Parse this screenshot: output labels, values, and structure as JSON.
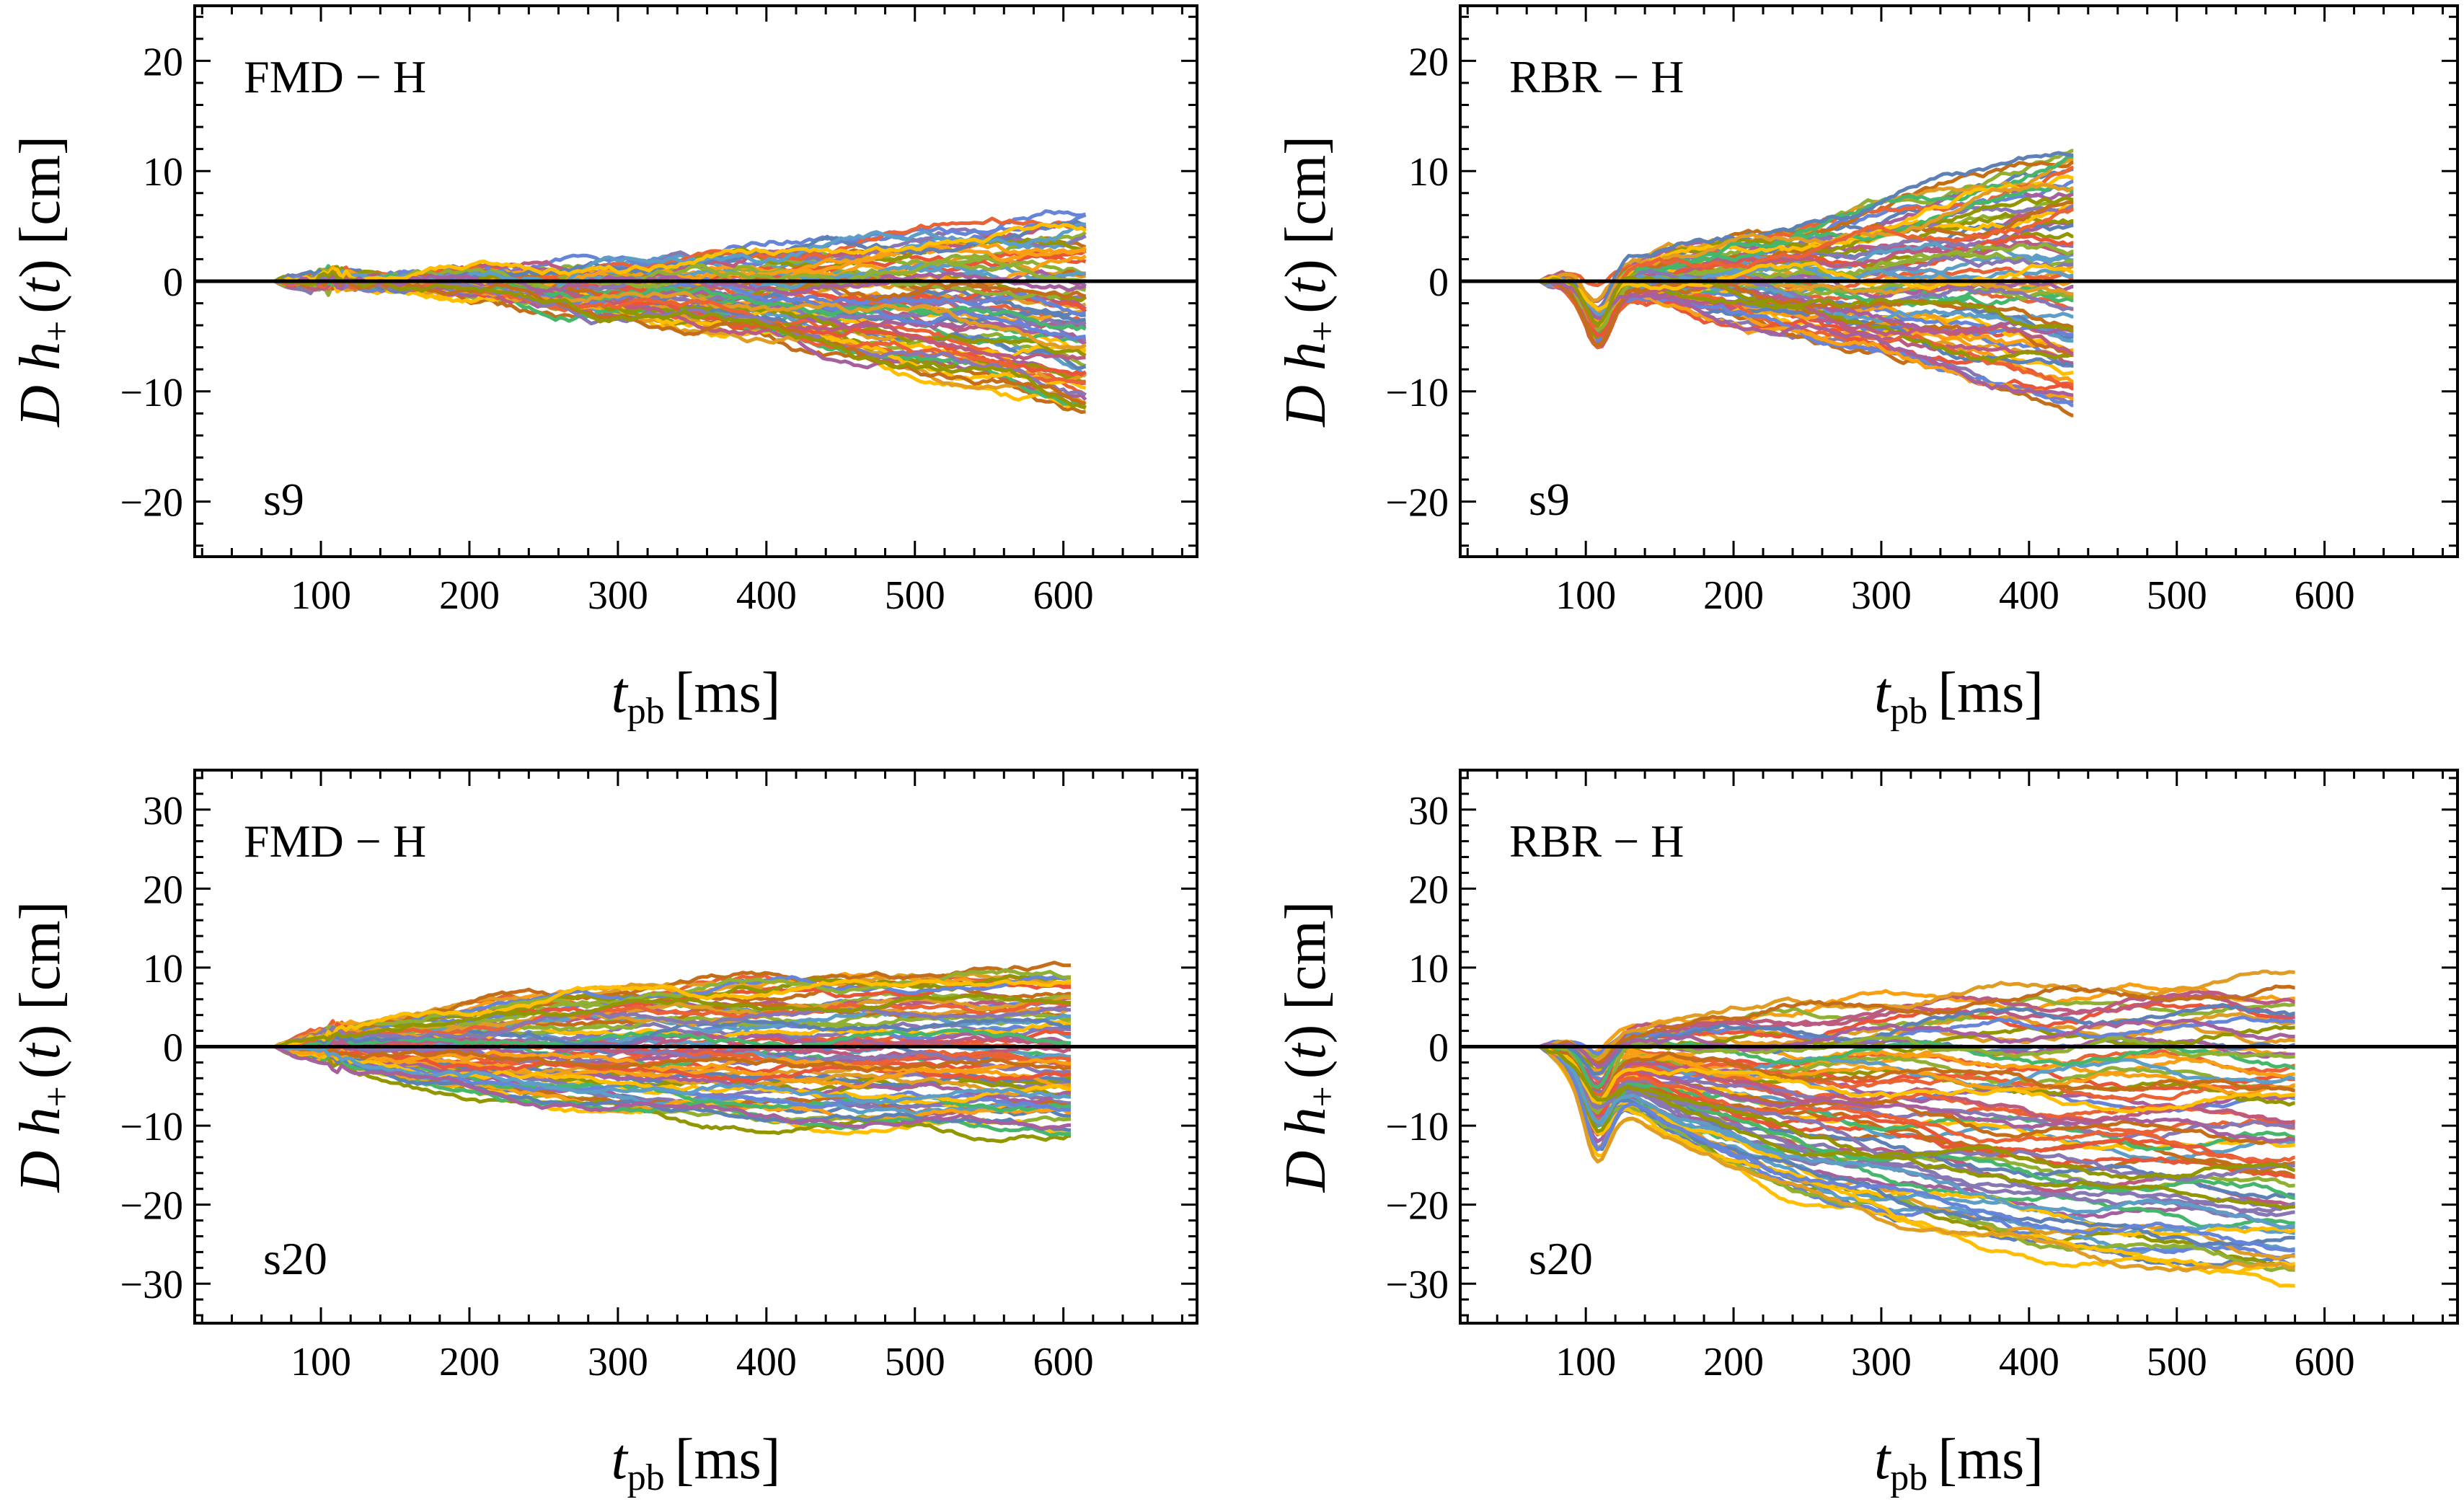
{
  "figure": {
    "colors": [
      "#5E81B5",
      "#E19C24",
      "#8FB032",
      "#EB6235",
      "#8778B3",
      "#C56E1A",
      "#5D9EC7",
      "#FFBF00",
      "#A5609D",
      "#929600",
      "#E95536",
      "#6685D9",
      "#F89F13",
      "#BC5B80",
      "#47B66D"
    ],
    "zero_line_color": "#000000"
  },
  "chart_data": [
    {
      "type": "line",
      "panel_label": "FMD − H",
      "model_label": "s9",
      "xlabel": "t_pb [ms]",
      "xlabel_main": "t",
      "xlabel_sub": "pb",
      "xlabel_unit": "[ms]",
      "ylabel": "D h+ (t) [cm]",
      "xlim": [
        15,
        690
      ],
      "ylim": [
        -25,
        25
      ],
      "xticks": [
        100,
        200,
        300,
        400,
        500,
        600
      ],
      "yticks": [
        -20,
        -10,
        0,
        10,
        20
      ],
      "t_start": 30,
      "t_end": 615,
      "n_series": 70,
      "final_values_range": [
        -12,
        6
      ],
      "series_examples": [
        {
          "x": [
            30,
            100,
            200,
            300,
            400,
            500,
            615
          ],
          "y": [
            0,
            0.5,
            1.5,
            2.5,
            2.5,
            5.5,
            6
          ]
        },
        {
          "x": [
            30,
            100,
            200,
            300,
            400,
            500,
            615
          ],
          "y": [
            0,
            -0.3,
            -1.5,
            -3,
            -5,
            -9,
            -12
          ]
        }
      ]
    },
    {
      "type": "line",
      "panel_label": "RBR − H",
      "model_label": "s9",
      "xlabel": "t_pb [ms]",
      "xlabel_main": "t",
      "xlabel_sub": "pb",
      "xlabel_unit": "[ms]",
      "ylabel": "D h+ (t) [cm]",
      "xlim": [
        15,
        690
      ],
      "ylim": [
        -25,
        25
      ],
      "xticks": [
        100,
        200,
        300,
        400,
        500,
        600
      ],
      "yticks": [
        -20,
        -10,
        0,
        10,
        20
      ],
      "t_start": 30,
      "t_end": 430,
      "n_series": 70,
      "final_values_range": [
        -12,
        12
      ],
      "series_examples": [
        {
          "x": [
            30,
            100,
            200,
            300,
            350,
            430
          ],
          "y": [
            0,
            -1,
            1.5,
            2,
            7,
            11.5
          ]
        },
        {
          "x": [
            30,
            100,
            200,
            300,
            380,
            430
          ],
          "y": [
            0,
            -5,
            -4,
            -5,
            -8,
            -12
          ]
        }
      ]
    },
    {
      "type": "line",
      "panel_label": "FMD − H",
      "model_label": "s20",
      "xlabel": "t_pb [ms]",
      "xlabel_main": "t",
      "xlabel_sub": "pb",
      "xlabel_unit": "[ms]",
      "ylabel": "D h+ (t) [cm]",
      "xlim": [
        15,
        690
      ],
      "ylim": [
        -35,
        35
      ],
      "xticks": [
        100,
        200,
        300,
        400,
        500,
        600
      ],
      "yticks": [
        -30,
        -20,
        -10,
        0,
        10,
        20,
        30
      ],
      "t_start": 30,
      "t_end": 605,
      "n_series": 70,
      "final_values_range": [
        -11,
        10
      ],
      "series_examples": [
        {
          "x": [
            30,
            100,
            200,
            300,
            400,
            500,
            605
          ],
          "y": [
            0,
            1,
            4,
            8,
            10,
            10,
            10
          ]
        },
        {
          "x": [
            30,
            100,
            200,
            300,
            400,
            500,
            605
          ],
          "y": [
            0,
            -0.5,
            -3,
            -5,
            -6,
            -8,
            -11
          ]
        }
      ]
    },
    {
      "type": "line",
      "panel_label": "RBR − H",
      "model_label": "s20",
      "xlabel": "t_pb [ms]",
      "xlabel_main": "t",
      "xlabel_sub": "pb",
      "xlabel_unit": "[ms]",
      "ylabel": "D h+ (t) [cm]",
      "xlim": [
        15,
        690
      ],
      "ylim": [
        -35,
        35
      ],
      "xticks": [
        100,
        200,
        300,
        400,
        500,
        600
      ],
      "yticks": [
        -30,
        -20,
        -10,
        0,
        10,
        20,
        30
      ],
      "t_start": 30,
      "t_end": 580,
      "n_series": 70,
      "final_values_range": [
        -32,
        8
      ],
      "series_examples": [
        {
          "x": [
            30,
            100,
            200,
            300,
            400,
            500,
            580
          ],
          "y": [
            0,
            1,
            3,
            2,
            4,
            6,
            8
          ]
        },
        {
          "x": [
            30,
            100,
            200,
            300,
            400,
            500,
            580
          ],
          "y": [
            0,
            -8,
            -18,
            -26,
            -27,
            -28,
            -32
          ]
        }
      ]
    }
  ]
}
